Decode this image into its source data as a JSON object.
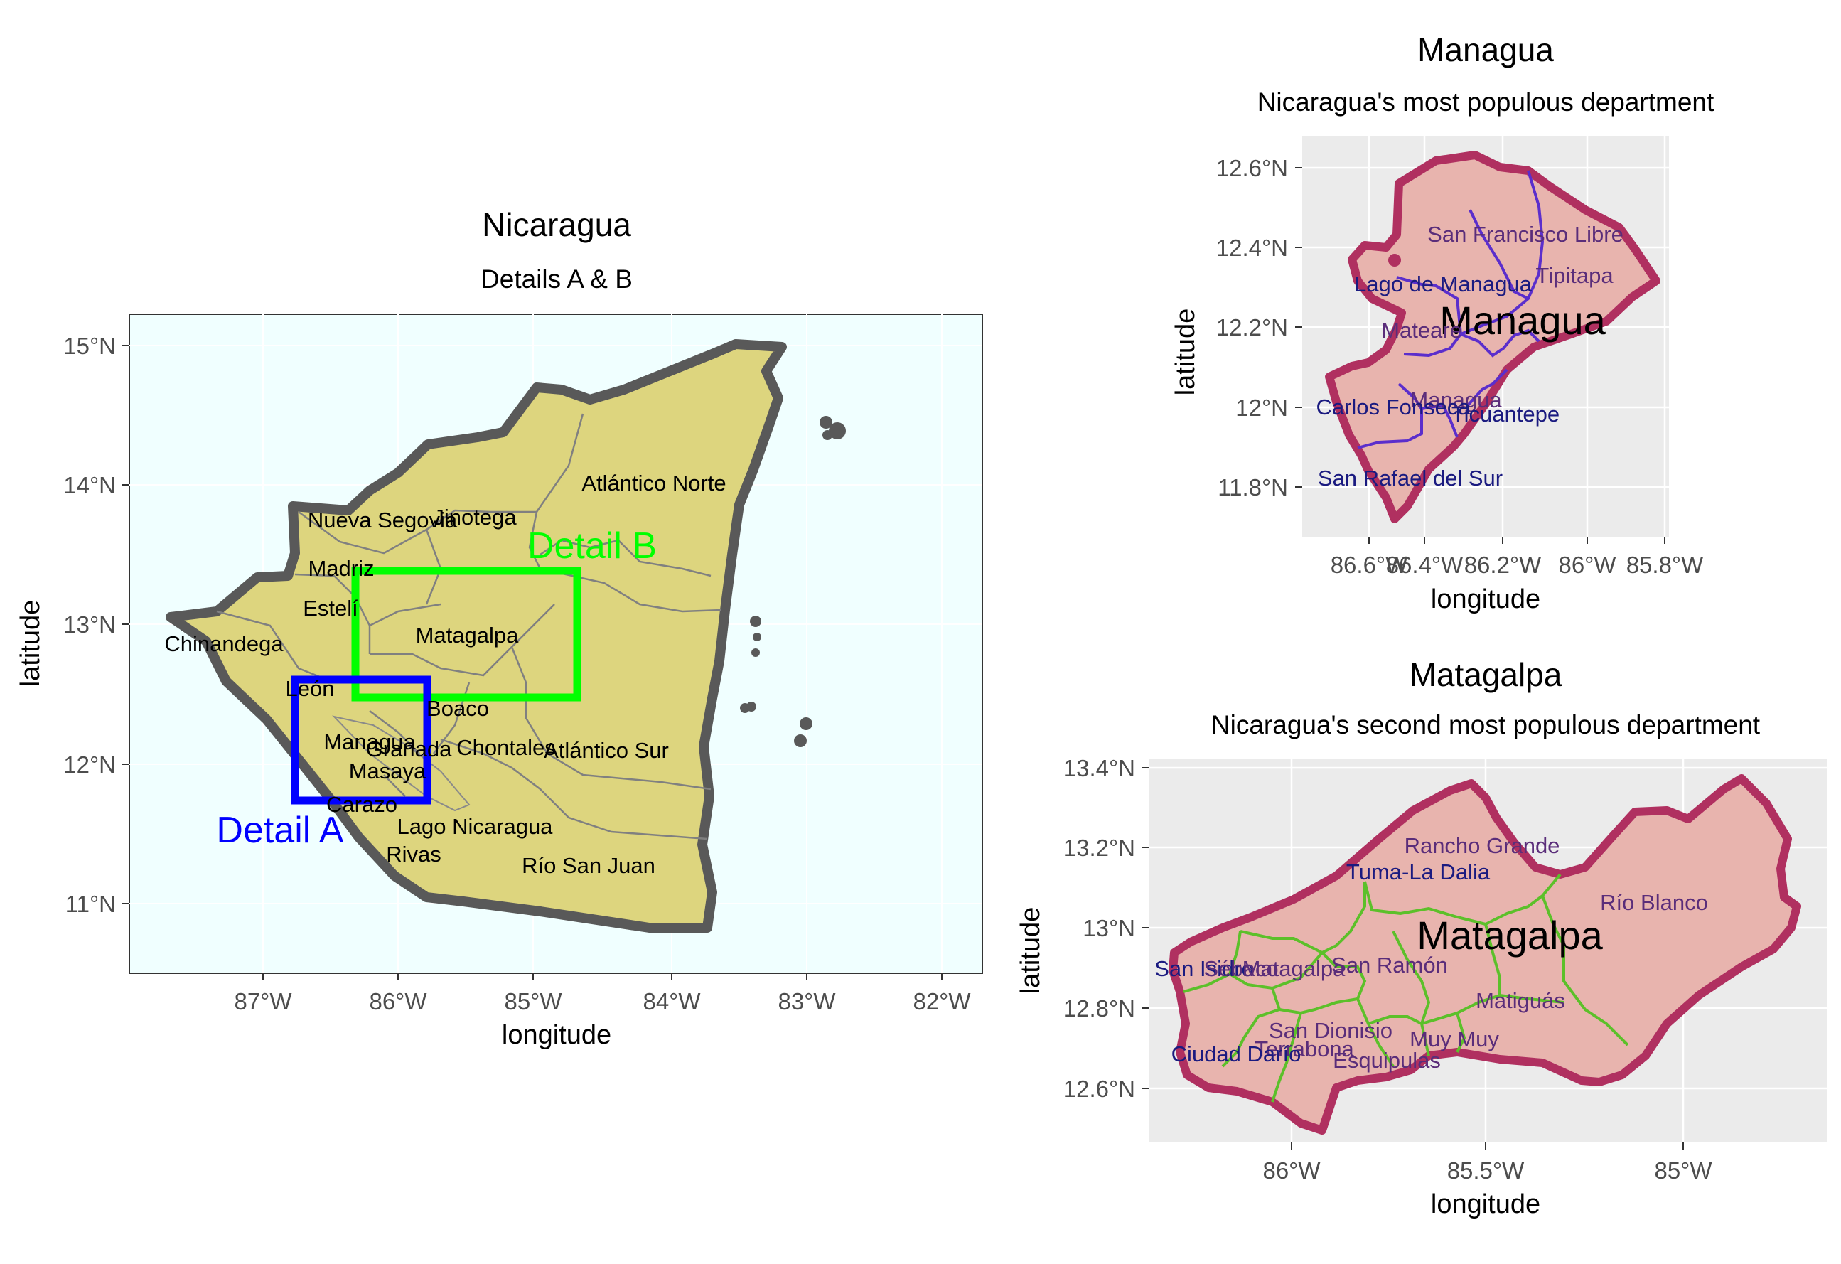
{
  "main_map": {
    "title": "Nicaragua",
    "subtitle": "Details A & B",
    "xlabel": "longitude",
    "ylabel": "latitude",
    "x_ticks": [
      "87°W",
      "86°W",
      "85°W",
      "84°W",
      "83°W",
      "82°W"
    ],
    "y_ticks": [
      "15°N",
      "14°N",
      "13°N",
      "12°N",
      "11°N"
    ],
    "departments": [
      "Atlántico Norte",
      "Nueva Segovia",
      "Jinotega",
      "Madriz",
      "Estelí",
      "Chinandega",
      "Matagalpa",
      "León",
      "Boaco",
      "Managua",
      "Granada",
      "Chontales",
      "Atlántico Sur",
      "Masaya",
      "Carazo",
      "Lago Nicaragua",
      "Rivas",
      "Río San Juan"
    ],
    "detail_a_label": "Detail A",
    "detail_b_label": "Detail B",
    "colors": {
      "land": "#ddd57e",
      "water": "#f0ffff",
      "border": "#595959",
      "detail_a": "#0000ff",
      "detail_b": "#00ff00"
    }
  },
  "managua_map": {
    "title": "Managua",
    "subtitle": "Nicaragua's most populous department",
    "xlabel": "longitude",
    "ylabel": "latitude",
    "x_ticks": [
      "86.6°W",
      "86.4°W",
      "86.2°W",
      "86°W",
      "85.8°W"
    ],
    "y_ticks": [
      "12.6°N",
      "12.4°N",
      "12.2°N",
      "12°N",
      "11.8°N"
    ],
    "big_label": "Managua",
    "municipalities": [
      "San Francisco Libre",
      "Tipitapa",
      "Lago de Managua",
      "Mateare",
      "Managua",
      "Carlos Fonseca",
      "Ticuantepe",
      "San Rafael del Sur"
    ],
    "colors": {
      "fill": "#e8b4ae",
      "outline": "#b03060",
      "lines": "#5b2ecc",
      "panel": "#ebebeb"
    }
  },
  "matagalpa_map": {
    "title": "Matagalpa",
    "subtitle": "Nicaragua's second most populous department",
    "xlabel": "longitude",
    "ylabel": "latitude",
    "x_ticks": [
      "86°W",
      "85.5°W",
      "85°W"
    ],
    "y_ticks": [
      "13.4°N",
      "13.2°N",
      "13°N",
      "12.8°N",
      "12.6°N"
    ],
    "big_label": "Matagalpa",
    "municipalities": [
      "Rancho Grande",
      "Tuma-La Dalia",
      "Río Blanco",
      "San Isidro",
      "Sébaco",
      "Matagalpa",
      "San Ramón",
      "Matiguás",
      "San Dionisio",
      "Terrabona",
      "Muy Muy",
      "Ciudad Darío",
      "Esquipulas"
    ],
    "colors": {
      "fill": "#e8b4ae",
      "outline": "#b03060",
      "lines": "#5cc02a",
      "panel": "#ebebeb"
    }
  }
}
